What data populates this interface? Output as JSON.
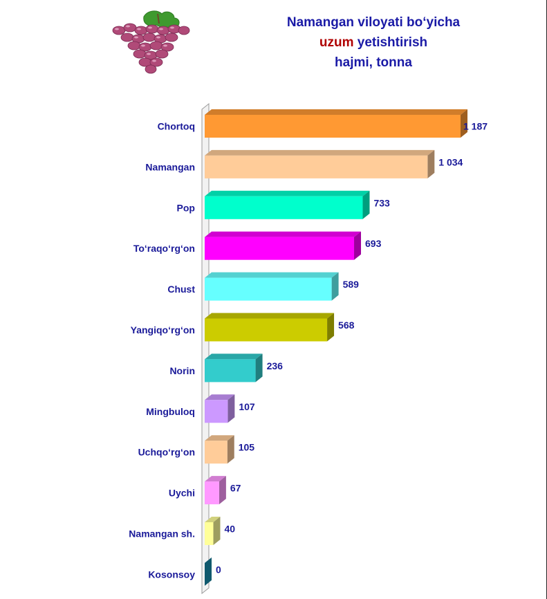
{
  "title": {
    "line1": "Namangan viloyati bo‘yicha",
    "line2_accent": "uzum",
    "line2_rest": " yetishtirish",
    "line3": "hajmi, tonna"
  },
  "colors": {
    "title": "#1a1aa6",
    "accent": "#b00000",
    "labels": "#1a1a99"
  },
  "chart_data": {
    "type": "bar",
    "orientation": "horizontal",
    "style": "3d",
    "title": "Namangan viloyati bo‘yicha uzum yetishtirish hajmi, tonna",
    "categories": [
      "Chortoq",
      "Namangan",
      "Pop",
      "To‘raqo‘rg‘on",
      "Chust",
      "Yangiqo‘rg‘on",
      "Norin",
      "Mingbuloq",
      "Uchqo‘rg‘on",
      "Uychi",
      "Namangan sh.",
      "Kosonsoy"
    ],
    "values": [
      1187,
      1034,
      733,
      693,
      589,
      568,
      236,
      107,
      105,
      67,
      40,
      0
    ],
    "value_labels": [
      "1 187",
      "1 034",
      "733",
      "693",
      "589",
      "568",
      "236",
      "107",
      "105",
      "67",
      "40",
      "0"
    ],
    "colors": [
      "#ff9933",
      "#ffcc99",
      "#00ffcc",
      "#ff00ff",
      "#66ffff",
      "#cccc00",
      "#33cccc",
      "#cc99ff",
      "#ffcc99",
      "#ff99ff",
      "#ffff99",
      "#1a8fb0"
    ],
    "xlim": [
      0,
      1187
    ],
    "grid": false,
    "legend": "none"
  }
}
